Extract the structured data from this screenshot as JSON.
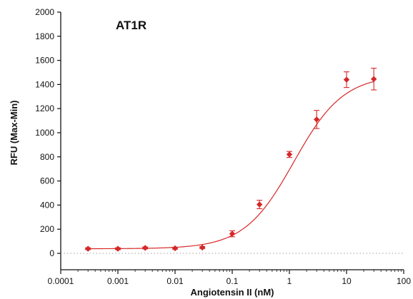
{
  "chart_data": {
    "type": "scatter",
    "title": "AT1R",
    "xlabel": "Angiotensin II (nM)",
    "ylabel": "RFU (Max-Min)",
    "x_scale": "log",
    "xlim": [
      0.0001,
      100
    ],
    "ylim": [
      0,
      2000
    ],
    "x_ticks": [
      0.0001,
      0.001,
      0.01,
      0.1,
      1,
      10,
      100
    ],
    "x_tick_labels": [
      "0.0001",
      "0.001",
      "0.01",
      "0.1",
      "1",
      "10",
      "100"
    ],
    "y_ticks": [
      0,
      200,
      400,
      600,
      800,
      1000,
      1200,
      1400,
      1600,
      1800,
      2000
    ],
    "y_tick_labels": [
      "0",
      "200",
      "400",
      "600",
      "800",
      "1000",
      "1200",
      "1400",
      "1600",
      "1800",
      "2000"
    ],
    "grid": false,
    "baseline": {
      "y": 0,
      "style": "dotted"
    },
    "color": "#d62728",
    "series": [
      {
        "x": [
          0.0003,
          0.001,
          0.003,
          0.01,
          0.03,
          0.1,
          0.3,
          1,
          3,
          10,
          30
        ],
        "y": [
          38,
          38,
          45,
          42,
          48,
          162,
          405,
          820,
          1110,
          1440,
          1445
        ],
        "error": [
          8,
          8,
          8,
          8,
          8,
          25,
          35,
          25,
          75,
          65,
          90
        ]
      }
    ],
    "fit_curve": {
      "type": "sigmoidal",
      "bottom": 38,
      "top": 1480,
      "ec50": 1.2,
      "hill": 1.0
    }
  }
}
